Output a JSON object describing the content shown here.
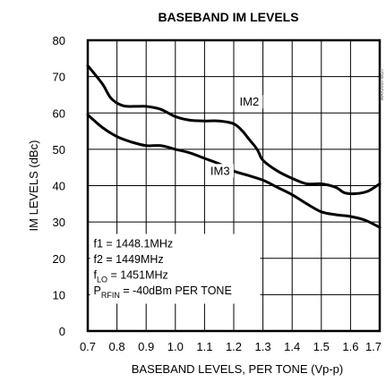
{
  "chart_data": {
    "type": "line",
    "title": "BASEBAND IM LEVELS",
    "xlabel": "BASEBAND LEVELS, PER TONE (Vp-p)",
    "ylabel": "IM LEVELS (dBc)",
    "xlim": [
      0.7,
      1.7
    ],
    "ylim": [
      0,
      80
    ],
    "x_ticks": [
      "0.7",
      "0.8",
      "0.9",
      "1.0",
      "1.1",
      "1.2",
      "1.3",
      "1.4",
      "1.5",
      "1.6",
      "1.7"
    ],
    "y_ticks": [
      "0",
      "10",
      "20",
      "30",
      "40",
      "50",
      "60",
      "70",
      "80"
    ],
    "grid": true,
    "series": [
      {
        "name": "IM2",
        "x": [
          0.7,
          0.75,
          0.78,
          0.82,
          0.86,
          0.9,
          0.95,
          1.0,
          1.05,
          1.1,
          1.15,
          1.2,
          1.23,
          1.25,
          1.28,
          1.3,
          1.35,
          1.4,
          1.45,
          1.5,
          1.55,
          1.58,
          1.62,
          1.66,
          1.7
        ],
        "y": [
          73,
          68,
          64,
          62,
          61.8,
          61.8,
          61,
          59,
          58,
          57.8,
          57.8,
          57,
          55,
          53,
          50,
          47,
          44,
          42,
          40.5,
          40.5,
          39.5,
          38,
          37.8,
          38.5,
          40.5
        ]
      },
      {
        "name": "IM3",
        "x": [
          0.7,
          0.75,
          0.8,
          0.85,
          0.9,
          0.95,
          1.0,
          1.05,
          1.1,
          1.15,
          1.2,
          1.25,
          1.3,
          1.35,
          1.4,
          1.45,
          1.5,
          1.55,
          1.6,
          1.65,
          1.7
        ],
        "y": [
          59.5,
          56,
          53.5,
          52,
          51,
          51,
          50,
          49,
          47.5,
          46,
          44,
          42.8,
          41.5,
          39.5,
          37.5,
          35,
          32.8,
          32,
          31.5,
          30.5,
          28.5
        ]
      }
    ],
    "conditions": [
      {
        "text": "f1 = 1448.1MHz"
      },
      {
        "text": "f2 = 1449MHz"
      },
      {
        "base": "f",
        "sub": "LO",
        "rest": " = 1451MHz"
      },
      {
        "base": "P",
        "sub": "RFIN",
        "rest": " = -40dBm PER TONE"
      }
    ],
    "side_code": "MAX2010 toc27"
  }
}
